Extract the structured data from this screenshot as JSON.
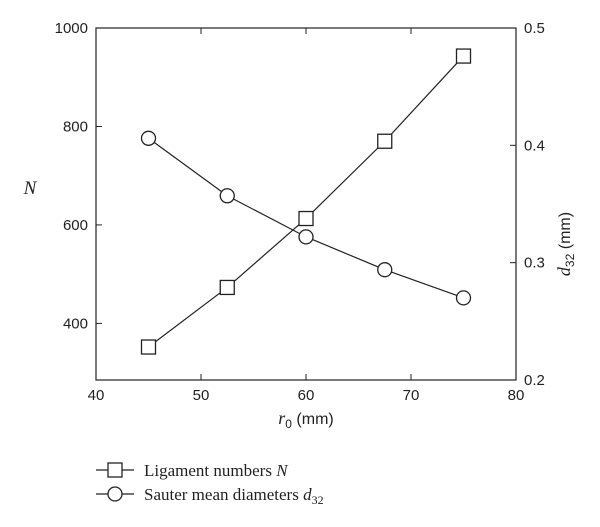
{
  "chart_data": {
    "type": "line",
    "x": [
      45,
      52.5,
      60,
      67.5,
      75
    ],
    "xlabel": {
      "main": "r",
      "sub": "0",
      "unit": " (mm)"
    },
    "xlim": [
      40,
      80
    ],
    "xticks": [
      "40",
      "50",
      "60",
      "70",
      "80"
    ],
    "ylabel_left": "N",
    "ylim_left": [
      285,
      1000
    ],
    "yticks_left": [
      "400",
      "600",
      "800",
      "1000"
    ],
    "ylabel_right": {
      "main": "d",
      "sub": "32",
      "unit": " (mm)"
    },
    "ylim_right": [
      0.2,
      0.5
    ],
    "yticks_right": [
      "0.2",
      "0.3",
      "0.4",
      "0.5"
    ],
    "grid": false,
    "legend_position": "below",
    "series": [
      {
        "name": "Ligament numbers",
        "name_symbol": "N",
        "axis": "left",
        "marker": "square",
        "values": [
          352,
          473,
          613,
          770,
          943
        ]
      },
      {
        "name": "Sauter mean diameters",
        "name_symbol": "d",
        "name_sub": "32",
        "axis": "right",
        "marker": "circle",
        "values": [
          0.406,
          0.357,
          0.322,
          0.294,
          0.27
        ]
      }
    ]
  }
}
